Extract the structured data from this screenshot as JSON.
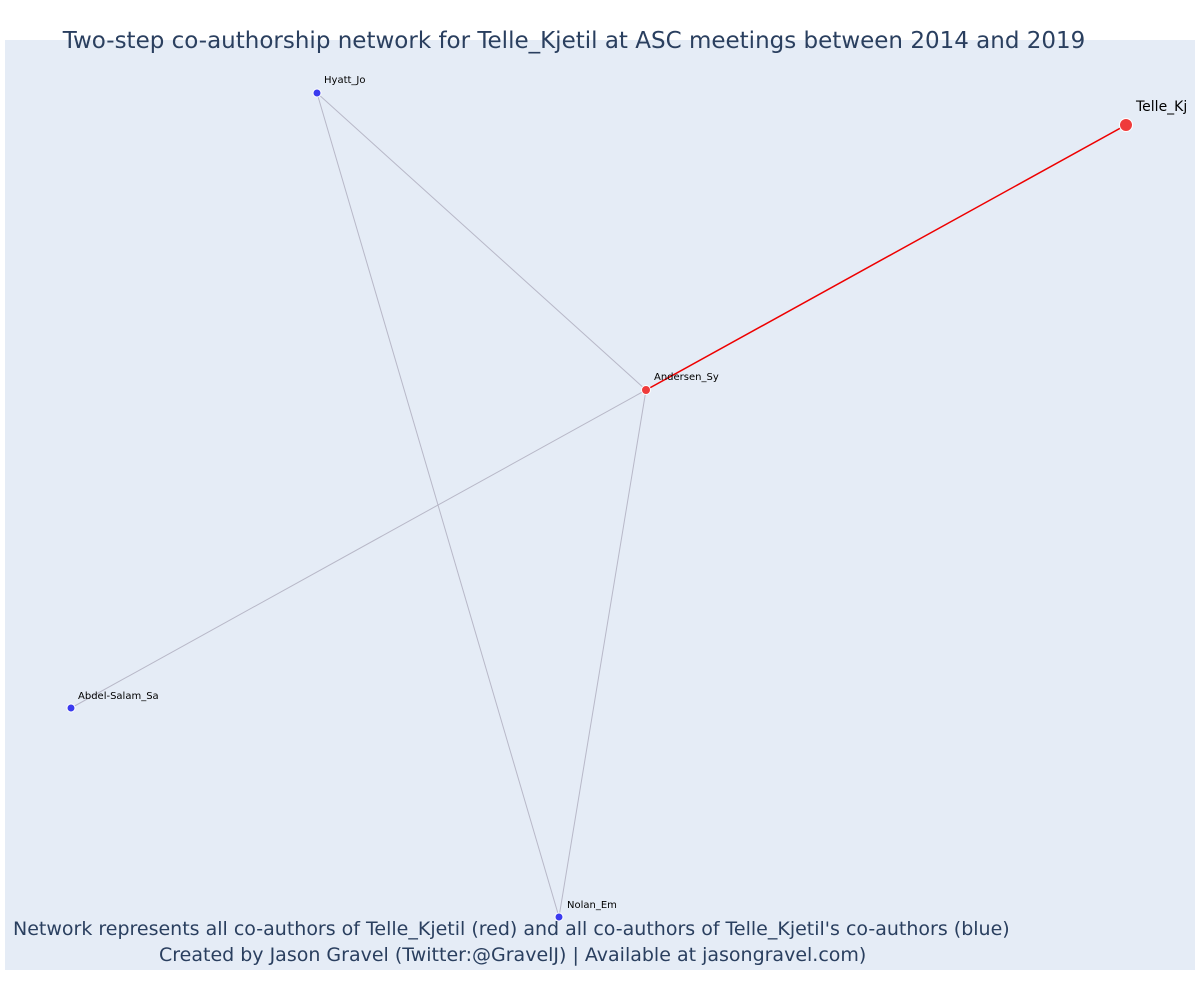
{
  "title": "Two-step co-authorship network for Telle_Kjetil at ASC meetings between 2014 and 2019",
  "captions": {
    "line1": "Network represents all co-authors of Telle_Kjetil (red) and all co-authors of Telle_Kjetil's co-authors (blue)",
    "line2": "Created by Jason Gravel (Twitter:@GravelJ) | Available at jasongravel.com)"
  },
  "colors": {
    "background": "#e5ecf6",
    "red_node": "#ef3b3b",
    "blue_node": "#3b3bef",
    "red_edge": "#ee0000",
    "grey_edge": "#b8b8c8",
    "text": "#2a3f5f"
  },
  "nodes": [
    {
      "id": "telle",
      "label": "Telle_Kj",
      "group": "focal"
    },
    {
      "id": "andersen",
      "label": "Andersen_Sy",
      "group": "coauthor"
    },
    {
      "id": "hyatt",
      "label": "Hyatt_Jo",
      "group": "second"
    },
    {
      "id": "abdel",
      "label": "Abdel-Salam_Sa",
      "group": "second"
    },
    {
      "id": "nolan",
      "label": "Nolan_Em",
      "group": "second"
    }
  ],
  "edges": [
    {
      "source": "telle",
      "target": "andersen",
      "type": "direct"
    },
    {
      "source": "andersen",
      "target": "hyatt",
      "type": "indirect"
    },
    {
      "source": "andersen",
      "target": "abdel",
      "type": "indirect"
    },
    {
      "source": "andersen",
      "target": "nolan",
      "type": "indirect"
    },
    {
      "source": "hyatt",
      "target": "nolan",
      "type": "indirect"
    }
  ]
}
